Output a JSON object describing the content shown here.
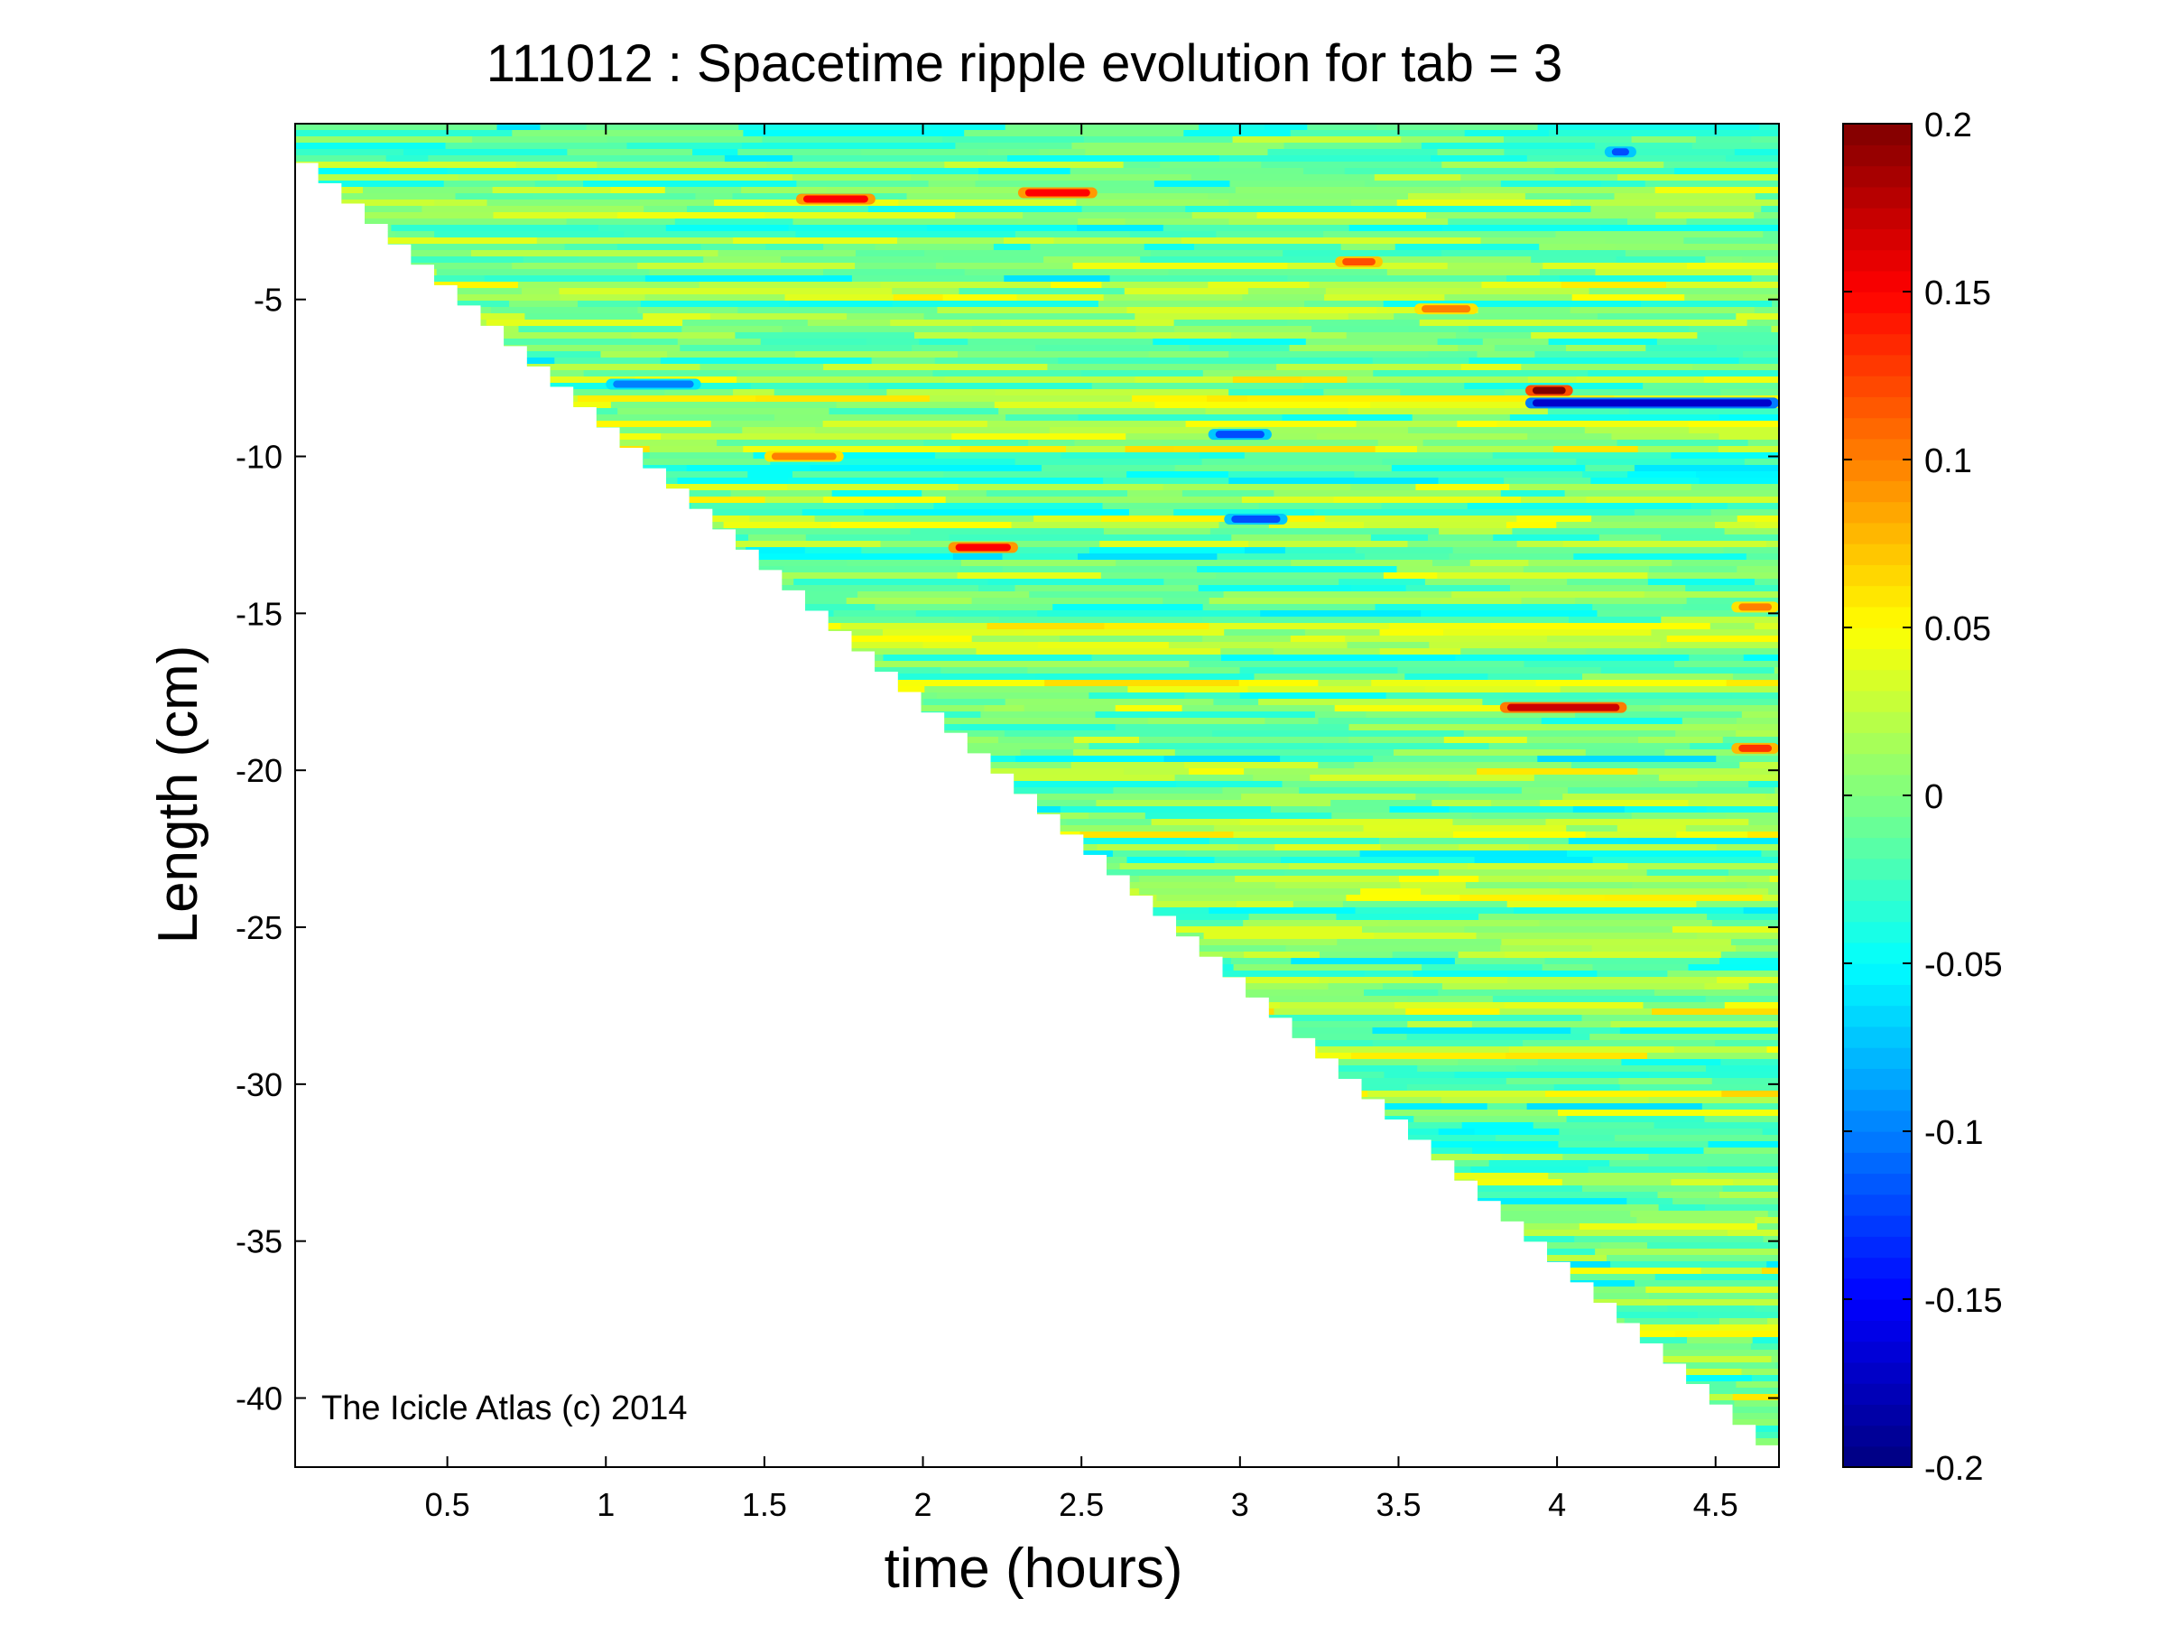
{
  "chart_data": {
    "type": "heatmap",
    "title": "111012 : Spacetime ripple evolution for tab = 3",
    "xlabel": "time (hours)",
    "ylabel": "Length (cm)",
    "xlim": [
      0.02,
      4.7
    ],
    "ylim": [
      -42.2,
      0.6
    ],
    "x_ticks": [
      0.5,
      1,
      1.5,
      2,
      2.5,
      3,
      3.5,
      4,
      4.5
    ],
    "x_tick_labels": [
      "0.5",
      "1",
      "1.5",
      "2",
      "2.5",
      "3",
      "3.5",
      "4",
      "4.5"
    ],
    "y_ticks": [
      -5,
      -10,
      -15,
      -20,
      -25,
      -30,
      -35,
      -40
    ],
    "y_tick_labels": [
      "-5",
      "-10",
      "-15",
      "-20",
      "-25",
      "-30",
      "-35",
      "-40"
    ],
    "colorbar": {
      "colormap": "jet",
      "clim": [
        -0.2,
        0.2
      ],
      "ticks": [
        0.2,
        0.15,
        0.1,
        0.05,
        0,
        -0.05,
        -0.1,
        -0.15,
        -0.2
      ],
      "tick_labels": [
        "0.2",
        "0.15",
        "0.1",
        "0.05",
        "0",
        "-0.05",
        "-0.1",
        "-0.15",
        "-0.2"
      ]
    },
    "data_region": {
      "description_boundary": "length grows linearly with time",
      "boundary_line": [
        [
          0.02,
          0.0
        ],
        [
          4.7,
          -41.5
        ]
      ]
    },
    "field_stats": {
      "background_value": 0.0,
      "typical_amplitude": 0.04
    },
    "notable_features": [
      {
        "t_start": 1.6,
        "t_end": 1.85,
        "length": -1.8,
        "value": 0.15
      },
      {
        "t_start": 2.3,
        "t_end": 2.55,
        "length": -1.6,
        "value": 0.15
      },
      {
        "t_start": 2.08,
        "t_end": 2.3,
        "length": -12.9,
        "value": 0.15
      },
      {
        "t_start": 3.82,
        "t_end": 4.22,
        "length": -18.0,
        "value": 0.17
      },
      {
        "t_start": 3.9,
        "t_end": 4.05,
        "length": -7.9,
        "value": 0.2
      },
      {
        "t_start": 3.9,
        "t_end": 4.7,
        "length": -8.3,
        "value": -0.17
      },
      {
        "t_start": 3.3,
        "t_end": 3.45,
        "length": -3.8,
        "value": 0.12
      },
      {
        "t_start": 3.55,
        "t_end": 3.75,
        "length": -5.3,
        "value": 0.1
      },
      {
        "t_start": 1.5,
        "t_end": 1.75,
        "length": -10.0,
        "value": 0.1
      },
      {
        "t_start": 2.9,
        "t_end": 3.1,
        "length": -9.3,
        "value": -0.12
      },
      {
        "t_start": 2.95,
        "t_end": 3.15,
        "length": -12.0,
        "value": -0.12
      },
      {
        "t_start": 4.15,
        "t_end": 4.25,
        "length": -0.3,
        "value": -0.12
      },
      {
        "t_start": 4.55,
        "t_end": 4.7,
        "length": -19.3,
        "value": 0.13
      },
      {
        "t_start": 4.55,
        "t_end": 4.7,
        "length": -14.8,
        "value": 0.1
      },
      {
        "t_start": 1.0,
        "t_end": 1.3,
        "length": -7.7,
        "value": -0.1
      }
    ]
  },
  "annotation": "The Icicle Atlas (c) 2014"
}
